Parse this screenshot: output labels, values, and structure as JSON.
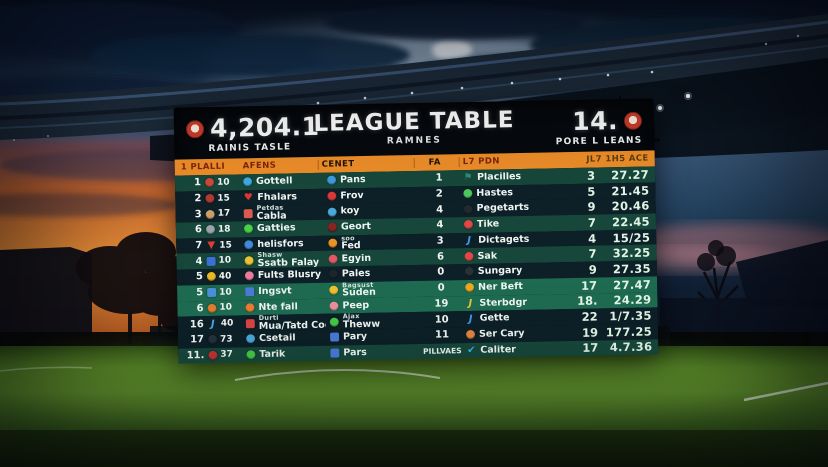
{
  "scoreboard": {
    "header": {
      "left_value": "4,204.1",
      "left_label": "RAINIS TASLE",
      "title": "LEAGUE TABLE",
      "subtitle": "RAMNES",
      "right_value": "14.",
      "right_label": "PORE L LEANS"
    },
    "columns": [
      {
        "label": "1 PLALLI",
        "color": "#7a2410"
      },
      {
        "label": "AFENS",
        "color": "#7a2410"
      },
      {
        "label": "CENET",
        "color": "#231408"
      },
      {
        "label": "FA",
        "color": "#231408"
      },
      {
        "label": "L7 PDN",
        "color": "#7a2410"
      },
      {
        "label": "JL7 1H5 ACE",
        "color": "#5a3c10"
      }
    ],
    "rows": [
      {
        "rank": "1",
        "badge": {
          "shape": "circle",
          "color": "#c84a3a"
        },
        "badge_num": "10",
        "team": {
          "icon": {
            "shape": "circle",
            "color": "#3fa8dc"
          },
          "sub": "",
          "name": "Gottell"
        },
        "mid": {
          "icon": {
            "shape": "circle",
            "color": "#3f9adc"
          },
          "sub": "",
          "name": "Pans"
        },
        "fa": "1",
        "right": {
          "icon": {
            "shape": "flag",
            "color": "#2f8a74"
          },
          "name": "Placilles"
        },
        "n1": "3",
        "n2": "27.27",
        "tone": "teal"
      },
      {
        "rank": "2",
        "badge": {
          "shape": "circle",
          "color": "#b03a30"
        },
        "badge_num": "15",
        "team": {
          "icon": {
            "shape": "heart",
            "color": "#e03434"
          },
          "sub": "",
          "name": "Fhalars"
        },
        "mid": {
          "icon": {
            "shape": "circle",
            "color": "#d83838"
          },
          "sub": "",
          "name": "Frov"
        },
        "fa": "2",
        "right": {
          "icon": {
            "shape": "circle",
            "color": "#4cc85c"
          },
          "name": "Hastes"
        },
        "n1": "5",
        "n2": "21.45",
        "tone": "navy"
      },
      {
        "rank": "3",
        "badge": {
          "shape": "circle",
          "color": "#c9a06a"
        },
        "badge_num": "17",
        "team": {
          "icon": {
            "shape": "square",
            "color": "#d85a50"
          },
          "sub": "Petdas",
          "name": "Cabla"
        },
        "mid": {
          "icon": {
            "shape": "circle",
            "color": "#4aa8d8"
          },
          "sub": "",
          "name": "koy"
        },
        "fa": "4",
        "right": {
          "icon": {
            "shape": "circle",
            "color": "#222a30"
          },
          "name": "Pegetarts"
        },
        "n1": "9",
        "n2": "20.46",
        "tone": "navy"
      },
      {
        "rank": "6",
        "badge": {
          "shape": "circle",
          "color": "#9aa4ac"
        },
        "badge_num": "18",
        "team": {
          "icon": {
            "shape": "circle",
            "color": "#48d048"
          },
          "sub": "",
          "name": "Gatties"
        },
        "mid": {
          "icon": {
            "shape": "circle",
            "color": "#8a2424"
          },
          "sub": "",
          "name": "Geort"
        },
        "fa": "4",
        "right": {
          "icon": {
            "shape": "circle",
            "color": "#e04848"
          },
          "name": "Tike"
        },
        "n1": "7",
        "n2": "22.45",
        "tone": "teal"
      },
      {
        "rank": "7",
        "badge": {
          "shape": "triangle",
          "color": "#e03c34"
        },
        "badge_num": "15",
        "team": {
          "icon": {
            "shape": "circle",
            "color": "#3f8ad8"
          },
          "sub": "",
          "name": "helisfors"
        },
        "mid": {
          "icon": {
            "shape": "circle",
            "color": "#e89424"
          },
          "sub": "soo",
          "name": "Fed"
        },
        "fa": "3",
        "right": {
          "icon": {
            "shape": "jay",
            "color": "#3f9ae8"
          },
          "name": "Dictagets"
        },
        "n1": "4",
        "n2": "15/25",
        "tone": "navy"
      },
      {
        "rank": "4",
        "badge": {
          "shape": "square",
          "color": "#3b6fd4"
        },
        "badge_num": "10",
        "team": {
          "icon": {
            "shape": "circle",
            "color": "#e8c434"
          },
          "sub": "Shasw",
          "name": "Ssatb Falay"
        },
        "mid": {
          "icon": {
            "shape": "circle",
            "color": "#e05868"
          },
          "sub": "",
          "name": "Egyin"
        },
        "fa": "6",
        "right": {
          "icon": {
            "shape": "circle",
            "color": "#e04848"
          },
          "name": "Sak"
        },
        "n1": "7",
        "n2": "32.25",
        "tone": "teal"
      },
      {
        "rank": "5",
        "badge": {
          "shape": "circle",
          "color": "#e8b824"
        },
        "badge_num": "40",
        "team": {
          "icon": {
            "shape": "circle",
            "color": "#e87c9c"
          },
          "sub": "",
          "name": "Fults Blusry"
        },
        "mid": {
          "icon": {
            "shape": "circle",
            "color": "#1c242c"
          },
          "sub": "",
          "name": "Pales"
        },
        "fa": "0",
        "right": {
          "icon": {
            "shape": "circle",
            "color": "#2a3238"
          },
          "name": "Sungary"
        },
        "n1": "9",
        "n2": "27.35",
        "tone": "navy"
      },
      {
        "rank": "5",
        "badge": {
          "shape": "square",
          "color": "#4a90d9"
        },
        "badge_num": "10",
        "team": {
          "icon": {
            "shape": "square",
            "color": "#4a7ad8"
          },
          "sub": "",
          "name": "Ingsvt"
        },
        "mid": {
          "icon": {
            "shape": "circle",
            "color": "#e8c030"
          },
          "sub": "Bagsust",
          "name": "Suden"
        },
        "fa": "0",
        "right": {
          "icon": {
            "shape": "circle",
            "color": "#e8a824"
          },
          "name": "Ner Beft"
        },
        "n1": "17",
        "n2": "27.47",
        "tone": "bright"
      },
      {
        "rank": "6",
        "badge": {
          "shape": "circle",
          "color": "#e07c30"
        },
        "badge_num": "10",
        "team": {
          "icon": {
            "shape": "circle",
            "color": "#e87c34"
          },
          "sub": "",
          "name": "Nte fall"
        },
        "mid": {
          "icon": {
            "shape": "circle",
            "color": "#e890a0"
          },
          "sub": "",
          "name": "Peep"
        },
        "fa": "19",
        "right": {
          "icon": {
            "shape": "jay",
            "color": "#e8c034"
          },
          "name": "Sterbdgr"
        },
        "n1": "18.",
        "n2": "24.29",
        "tone": "bright"
      },
      {
        "rank": "16",
        "badge": {
          "shape": "jay",
          "color": "#4aa8e8"
        },
        "badge_num": "40",
        "team": {
          "icon": {
            "shape": "square",
            "color": "#d84444"
          },
          "sub": "Durti",
          "name": "Mua/Tatd Coda"
        },
        "mid": {
          "icon": {
            "shape": "circle",
            "color": "#44c848"
          },
          "sub": "Ajax",
          "name": "Theww"
        },
        "fa": "10",
        "right": {
          "icon": {
            "shape": "jay",
            "color": "#3f9ae8"
          },
          "name": "Gette"
        },
        "n1": "22",
        "n2": "1/7.35",
        "tone": "navy"
      },
      {
        "rank": "17",
        "badge": {
          "shape": "circle",
          "color": "#24323e"
        },
        "badge_num": "73",
        "team": {
          "icon": {
            "shape": "circle",
            "color": "#4aa8d8"
          },
          "sub": "",
          "name": "Csetail"
        },
        "mid": {
          "icon": {
            "shape": "square",
            "color": "#4a7ad8"
          },
          "sub": "",
          "name": "Pary"
        },
        "fa": "11",
        "right": {
          "icon": {
            "shape": "circle",
            "color": "#e08444"
          },
          "name": "Ser Cary"
        },
        "n1": "19",
        "n2": "177.25",
        "tone": "navy"
      },
      {
        "rank": "11.",
        "badge": {
          "shape": "circle",
          "color": "#c03434"
        },
        "badge_num": "37",
        "team": {
          "icon": {
            "shape": "circle",
            "color": "#44c844"
          },
          "sub": "",
          "name": "Tarik"
        },
        "mid": {
          "icon": {
            "shape": "square",
            "color": "#4a7ad8"
          },
          "sub": "",
          "name": "Pars"
        },
        "fa": "PILLVAES",
        "right": {
          "icon": {
            "shape": "check",
            "color": "#38b0e8"
          },
          "name": "Caliter"
        },
        "n1": "17",
        "n2": "4.7.36",
        "tone": "teal"
      }
    ]
  },
  "colors": {
    "strip": "#e78a28",
    "row_teal": "#17473b",
    "row_navy": "#0d2027",
    "row_bright": "#1e6b52",
    "numbers": "#e2f4e6"
  }
}
